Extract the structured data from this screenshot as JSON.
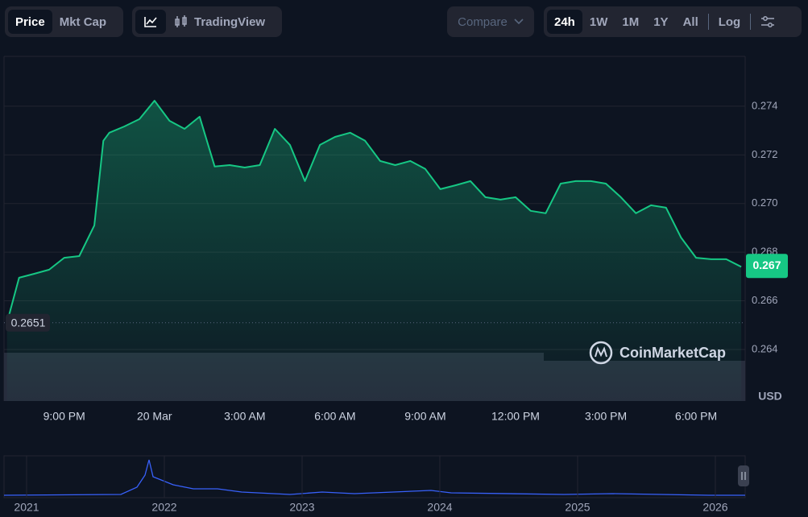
{
  "toolbar": {
    "price": "Price",
    "mkt_cap": "Mkt Cap",
    "tradingview": "TradingView",
    "compare": "Compare",
    "ranges": [
      "24h",
      "1W",
      "1M",
      "1Y",
      "All"
    ],
    "log": "Log"
  },
  "chart_data": {
    "type": "line",
    "color": "#16c784",
    "currency": "USD",
    "watermark": "CoinMarketCap",
    "x": [
      19.1,
      19.5,
      20,
      20.5,
      21,
      21.5,
      22,
      22.3,
      22.5,
      23,
      23.5,
      24,
      24.5,
      25,
      25.5,
      26,
      26.5,
      27,
      27.5,
      28,
      28.5,
      29,
      29.5,
      30,
      30.5,
      31,
      31.5,
      32,
      32.5,
      33,
      33.5,
      34,
      34.5,
      35,
      35.5,
      36,
      36.5,
      37,
      37.5,
      38,
      38.5,
      39,
      39.5,
      40,
      40.5,
      41,
      41.5,
      42,
      42.5,
      43,
      43.5
    ],
    "values": [
      0.2651,
      0.26695,
      0.26711,
      0.26728,
      0.26777,
      0.26784,
      0.2691,
      0.27258,
      0.27291,
      0.27317,
      0.27347,
      0.27423,
      0.2734,
      0.27307,
      0.27357,
      0.27152,
      0.27158,
      0.27148,
      0.27158,
      0.27307,
      0.27241,
      0.27092,
      0.27241,
      0.27274,
      0.27291,
      0.27258,
      0.27175,
      0.27158,
      0.27175,
      0.27142,
      0.27059,
      0.27075,
      0.27092,
      0.27026,
      0.27016,
      0.27026,
      0.2697,
      0.2696,
      0.27082,
      0.27092,
      0.27092,
      0.27082,
      0.27026,
      0.2696,
      0.26993,
      0.26983,
      0.2686,
      0.26777,
      0.26771,
      0.26771,
      0.2674
    ],
    "value_labels": [
      "0.2651",
      null,
      null,
      null,
      null,
      null,
      null,
      null,
      null,
      null,
      null,
      null,
      null,
      null,
      null,
      null,
      null,
      null,
      null,
      null,
      null,
      null,
      null,
      null,
      null,
      null,
      null,
      null,
      null,
      null,
      null,
      null,
      null,
      null,
      null,
      null,
      null,
      null,
      null,
      null,
      null,
      null,
      null,
      null,
      null,
      null,
      null,
      null,
      null,
      null,
      "0.267"
    ],
    "xlim": [
      19,
      43.63
    ],
    "xticks": [
      {
        "value": 21,
        "label": "9:00 PM"
      },
      {
        "value": 24,
        "label": "20 Mar"
      },
      {
        "value": 27,
        "label": "3:00 AM"
      },
      {
        "value": 30,
        "label": "6:00 AM"
      },
      {
        "value": 33,
        "label": "9:00 AM"
      },
      {
        "value": 36,
        "label": "12:00 PM"
      },
      {
        "value": 39,
        "label": "3:00 PM"
      },
      {
        "value": 42,
        "label": "6:00 PM"
      }
    ],
    "ylim": [
      0.26188,
      0.27605
    ],
    "yticks": [
      0.264,
      0.266,
      0.268,
      {
        "value": 0.27,
        "label": "0.270"
      },
      0.272,
      0.274
    ],
    "grid": true
  },
  "navigator": {
    "years": [
      "2021",
      "2022",
      "2023",
      "2024",
      "2025",
      "2026"
    ]
  }
}
